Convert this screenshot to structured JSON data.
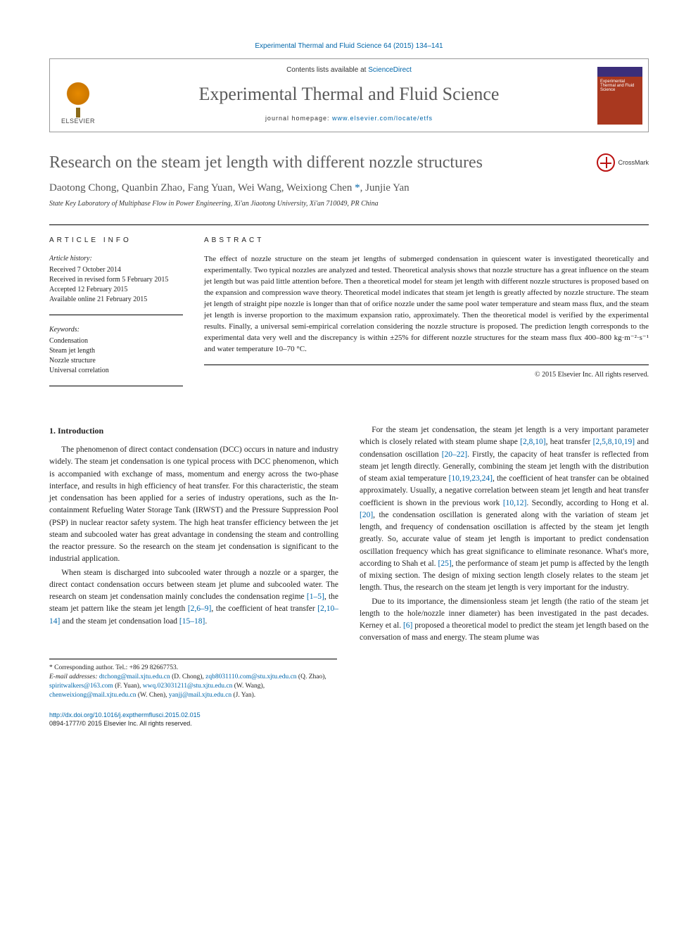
{
  "journal_ref": "Experimental Thermal and Fluid Science 64 (2015) 134–141",
  "header": {
    "contents_prefix": "Contents lists available at ",
    "contents_link": "ScienceDirect",
    "journal_title": "Experimental Thermal and Fluid Science",
    "homepage_prefix": "journal homepage: ",
    "homepage_url": "www.elsevier.com/locate/etfs",
    "publisher": "ELSEVIER",
    "cover_top": "",
    "cover_title": "Experimental Thermal and Fluid Science"
  },
  "article": {
    "title": "Research on the steam jet length with different nozzle structures",
    "crossmark": "CrossMark",
    "authors_html": "Daotong Chong, Quanbin Zhao, Fang Yuan, Wei Wang, Weixiong Chen *, Junjie Yan",
    "affiliation": "State Key Laboratory of Multiphase Flow in Power Engineering, Xi'an Jiaotong University, Xi'an 710049, PR China"
  },
  "info": {
    "label": "article info",
    "history_head": "Article history:",
    "history": [
      "Received 7 October 2014",
      "Received in revised form 5 February 2015",
      "Accepted 12 February 2015",
      "Available online 21 February 2015"
    ],
    "keywords_head": "Keywords:",
    "keywords": [
      "Condensation",
      "Steam jet length",
      "Nozzle structure",
      "Universal correlation"
    ]
  },
  "abstract": {
    "label": "abstract",
    "text": "The effect of nozzle structure on the steam jet lengths of submerged condensation in quiescent water is investigated theoretically and experimentally. Two typical nozzles are analyzed and tested. Theoretical analysis shows that nozzle structure has a great influence on the steam jet length but was paid little attention before. Then a theoretical model for steam jet length with different nozzle structures is proposed based on the expansion and compression wave theory. Theoretical model indicates that steam jet length is greatly affected by nozzle structure. The steam jet length of straight pipe nozzle is longer than that of orifice nozzle under the same pool water temperature and steam mass flux, and the steam jet length is inverse proportion to the maximum expansion ratio, approximately. Then the theoretical model is verified by the experimental results. Finally, a universal semi-empirical correlation considering the nozzle structure is proposed. The prediction length corresponds to the experimental data very well and the discrepancy is within ±25% for different nozzle structures for the steam mass flux 400–800 kg·m⁻²·s⁻¹ and water temperature 10–70 °C.",
    "copyright": "© 2015 Elsevier Inc. All rights reserved."
  },
  "body": {
    "section_heading": "1. Introduction",
    "p1": "The phenomenon of direct contact condensation (DCC) occurs in nature and industry widely. The steam jet condensation is one typical process with DCC phenomenon, which is accompanied with exchange of mass, momentum and energy across the two-phase interface, and results in high efficiency of heat transfer. For this characteristic, the steam jet condensation has been applied for a series of industry operations, such as the In-containment Refueling Water Storage Tank (IRWST) and the Pressure Suppression Pool (PSP) in nuclear reactor safety system. The high heat transfer efficiency between the jet steam and subcooled water has great advantage in condensing the steam and controlling the reactor pressure. So the research on the steam jet condensation is significant to the industrial application.",
    "p2_a": "When steam is discharged into subcooled water through a nozzle or a sparger, the direct contact condensation occurs between steam jet plume and subcooled water. The research on steam jet condensation mainly concludes the condensation regime ",
    "p2_c1": "[1–5]",
    "p2_b": ", the steam jet pattern like the steam jet length ",
    "p2_c2": "[2,6–9]",
    "p2_c": ", the coefficient of heat transfer ",
    "p2_c3": "[2,10–14]",
    "p2_d": " and the steam jet condensation load ",
    "p2_c4": "[15–18]",
    "p2_e": ".",
    "p3_a": "For the steam jet condensation, the steam jet length is a very important parameter which is closely related with steam plume shape ",
    "p3_c1": "[2,8,10]",
    "p3_b": ", heat transfer ",
    "p3_c2": "[2,5,8,10,19]",
    "p3_c": " and condensation oscillation ",
    "p3_c3": "[20–22]",
    "p3_d": ". Firstly, the capacity of heat transfer is reflected from steam jet length directly. Generally, combining the steam jet length with the distribution of steam axial temperature ",
    "p3_c4": "[10,19,23,24]",
    "p3_e": ", the coefficient of heat transfer can be obtained approximately. Usually, a negative correlation between steam jet length and heat transfer coefficient is shown in the previous work ",
    "p3_c5": "[10,12]",
    "p3_f": ". Secondly, according to Hong et al. ",
    "p3_c6": "[20]",
    "p3_g": ", the condensation oscillation is generated along with the variation of steam jet length, and frequency of condensation oscillation is affected by the steam jet length greatly. So, accurate value of steam jet length is important to predict condensation oscillation frequency which has great significance to eliminate resonance. What's more, according to Shah et al. ",
    "p3_c7": "[25]",
    "p3_h": ", the performance of steam jet pump is affected by the length of mixing section. The design of mixing section length closely relates to the steam jet length. Thus, the research on the steam jet length is very important for the industry.",
    "p4_a": "Due to its importance, the dimensionless steam jet length (the ratio of the steam jet length to the hole/nozzle inner diameter) has been investigated in the past decades. Kerney et al. ",
    "p4_c1": "[6]",
    "p4_b": " proposed a theoretical model to predict the steam jet length based on the conversation of mass and energy. The steam plume was"
  },
  "footnotes": {
    "corr": "* Corresponding author. Tel.: +86 29 82667753.",
    "emails_label": "E-mail addresses: ",
    "emails": "dtchong@mail.xjtu.edu.cn (D. Chong), zqb8031110.com@stu.xjtu.edu.cn (Q. Zhao), spiritwalkers@163.com (F. Yuan), wwq.023031211@stu.xjtu.edu.cn (W. Wang), chenweixiong@mail.xjtu.edu.cn (W. Chen), yanjj@mail.xjtu.edu.cn (J. Yan)."
  },
  "bottom": {
    "doi": "http://dx.doi.org/10.1016/j.expthermflusci.2015.02.015",
    "issn_line": "0894-1777/© 2015 Elsevier Inc. All rights reserved."
  },
  "colors": {
    "link": "#0066aa",
    "title_gray": "#606060",
    "cover_bg": "#a9381f",
    "cover_top": "#3b2e7a"
  }
}
